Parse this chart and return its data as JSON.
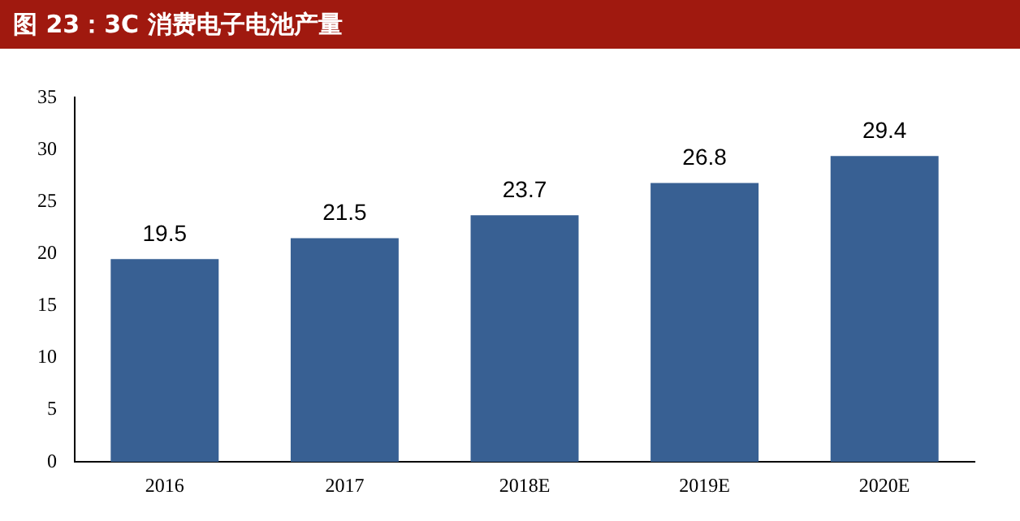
{
  "chart_data": {
    "type": "bar",
    "title": "图 23：3C 消费电子电池产量",
    "categories": [
      "2016",
      "2017",
      "2018E",
      "2019E",
      "2020E"
    ],
    "values": [
      19.5,
      21.5,
      23.7,
      26.8,
      29.4
    ],
    "color": "#386093",
    "ylim": [
      0,
      35
    ],
    "yticks": [
      0,
      5,
      10,
      15,
      20,
      25,
      30,
      35
    ],
    "grid": false,
    "legend": false,
    "data_labels": true
  }
}
